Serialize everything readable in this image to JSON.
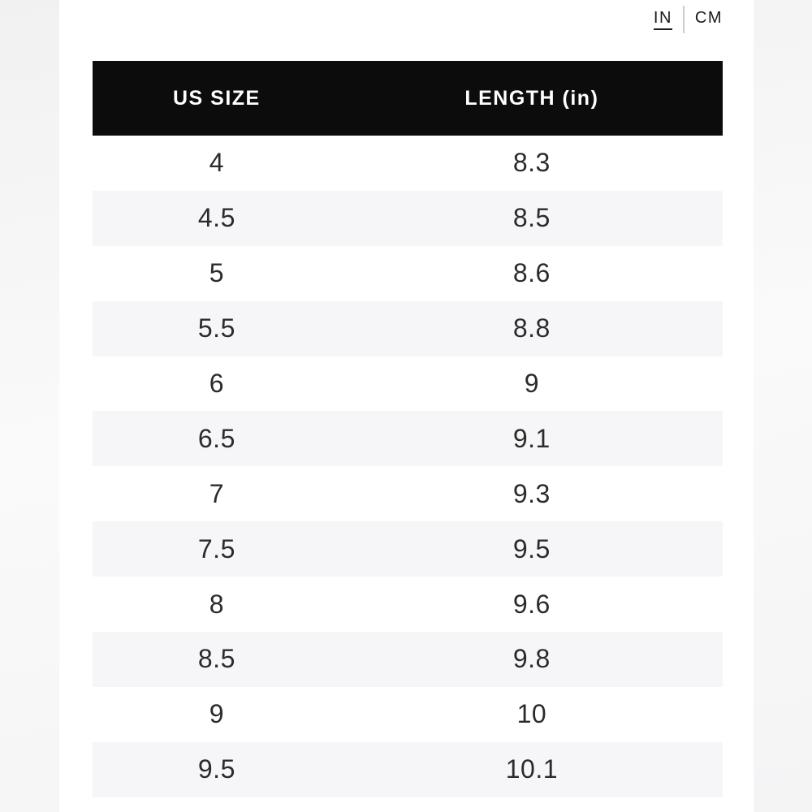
{
  "unit_toggle": {
    "options": [
      {
        "label": "IN",
        "selected": true
      },
      {
        "label": "CM",
        "selected": false
      }
    ]
  },
  "table": {
    "columns": [
      "US SIZE",
      "LENGTH (in)"
    ],
    "rows": [
      [
        "4",
        "8.3"
      ],
      [
        "4.5",
        "8.5"
      ],
      [
        "5",
        "8.6"
      ],
      [
        "5.5",
        "8.8"
      ],
      [
        "6",
        "9"
      ],
      [
        "6.5",
        "9.1"
      ],
      [
        "7",
        "9.3"
      ],
      [
        "7.5",
        "9.5"
      ],
      [
        "8",
        "9.6"
      ],
      [
        "8.5",
        "9.8"
      ],
      [
        "9",
        "10"
      ],
      [
        "9.5",
        "10.1"
      ]
    ]
  },
  "colors": {
    "header_bg": "#0c0c0c",
    "header_text": "#ffffff",
    "row_alt_bg": "#f6f6f8",
    "page_bg": "#f4f4f5",
    "text": "#2b2b2b",
    "divider": "#cccccc"
  }
}
